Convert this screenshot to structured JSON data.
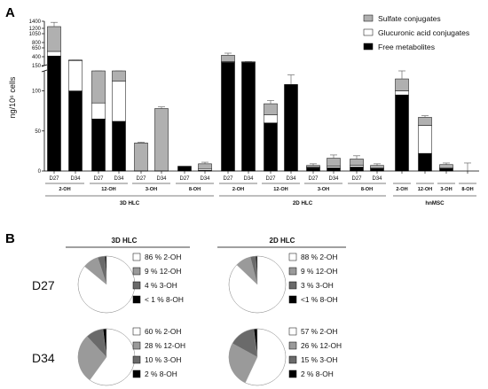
{
  "panel_a_label": "A",
  "panel_b_label": "B",
  "colors": {
    "sulfate": "#b0b0b0",
    "glucuronic": "#ffffff",
    "free": "#000000",
    "pie_2oh": "#ffffff",
    "pie_12oh": "#9a9a9a",
    "pie_3oh": "#6a6a6a",
    "pie_8oh": "#000000"
  },
  "chart_data": [
    {
      "type": "bar",
      "stacked": true,
      "ylabel": "ng/10⁶ cells",
      "y_ticks_lower": [
        0,
        50,
        100
      ],
      "y_ticks_upper": [
        150,
        400,
        650,
        800,
        1050,
        1200,
        1400
      ],
      "y_axis_break": [
        125,
        150
      ],
      "legend": [
        "Sulfate conjugates",
        "Glucuronic acid conjugates",
        "Free metabolites"
      ],
      "legend_position": "top-right",
      "categories": [
        "D27",
        "D34",
        "D27",
        "D34",
        "D27",
        "D34",
        "D27",
        "D34",
        "D27",
        "D34",
        "D27",
        "D34",
        "D27",
        "D34",
        "D27",
        "D34",
        "",
        "",
        "",
        ""
      ],
      "metabolite_groups": [
        {
          "label": "2-OH"
        },
        {
          "label": "12-OH"
        },
        {
          "label": "3-OH"
        },
        {
          "label": "8-OH"
        },
        {
          "label": "2-OH"
        },
        {
          "label": "12-OH"
        },
        {
          "label": "3-OH"
        },
        {
          "label": "8-OH"
        },
        {
          "label": "2-OH"
        },
        {
          "label": "12-OH"
        },
        {
          "label": "3-OH"
        },
        {
          "label": "8-OH"
        }
      ],
      "cell_groups": [
        {
          "label": "3D HLC"
        },
        {
          "label": "2D HLC"
        },
        {
          "label": "hnMSC"
        }
      ],
      "series": [
        {
          "name": "Free metabolites",
          "values": [
            420,
            100,
            65,
            62,
            0,
            0,
            6,
            1,
            240,
            240,
            60,
            108,
            4,
            4,
            5,
            3,
            95,
            22,
            3,
            0
          ]
        },
        {
          "name": "Glucuronic acid conjugates",
          "values": [
            130,
            200,
            20,
            50,
            0,
            0,
            0,
            2,
            20,
            20,
            10,
            0,
            1,
            2,
            2,
            1,
            5,
            35,
            1,
            0
          ]
        },
        {
          "name": "Sulfate conjugates",
          "values": [
            700,
            5,
            45,
            26,
            35,
            78,
            0,
            6,
            180,
            0,
            14,
            0,
            2,
            10,
            8,
            3,
            15,
            10,
            4,
            0
          ]
        }
      ],
      "errors": [
        120,
        5,
        13,
        6,
        1,
        2,
        0,
        2,
        60,
        5,
        4,
        12,
        2,
        4,
        4,
        2,
        23,
        2,
        2,
        10
      ]
    },
    {
      "type": "pie",
      "title": "3D HLC",
      "row": "D27",
      "labels": [
        "2-OH",
        "12-OH",
        "3-OH",
        "8-OH"
      ],
      "values": [
        86,
        9,
        4,
        1
      ],
      "legend_text": [
        "86 % 2-OH",
        "9 % 12-OH",
        "4 % 3-OH",
        "< 1 % 8-OH"
      ]
    },
    {
      "type": "pie",
      "title": "2D HLC",
      "row": "D27",
      "labels": [
        "2-OH",
        "12-OH",
        "3-OH",
        "8-OH"
      ],
      "values": [
        88,
        9,
        3,
        1
      ],
      "legend_text": [
        "88 % 2-OH",
        "9 % 12-OH",
        "3 % 3-OH",
        "<1 % 8-OH"
      ]
    },
    {
      "type": "pie",
      "title": "3D HLC",
      "row": "D34",
      "labels": [
        "2-OH",
        "12-OH",
        "3-OH",
        "8-OH"
      ],
      "values": [
        60,
        28,
        10,
        2
      ],
      "legend_text": [
        "60 % 2-OH",
        "28 % 12-OH",
        "10 % 3-OH",
        "2 % 8-OH"
      ]
    },
    {
      "type": "pie",
      "title": "2D HLC",
      "row": "D34",
      "labels": [
        "2-OH",
        "12-OH",
        "3-OH",
        "8-OH"
      ],
      "values": [
        57,
        26,
        15,
        2
      ],
      "legend_text": [
        "57 % 2-OH",
        "26 % 12-OH",
        "15 % 3-OH",
        "2 % 8-OH"
      ]
    }
  ]
}
